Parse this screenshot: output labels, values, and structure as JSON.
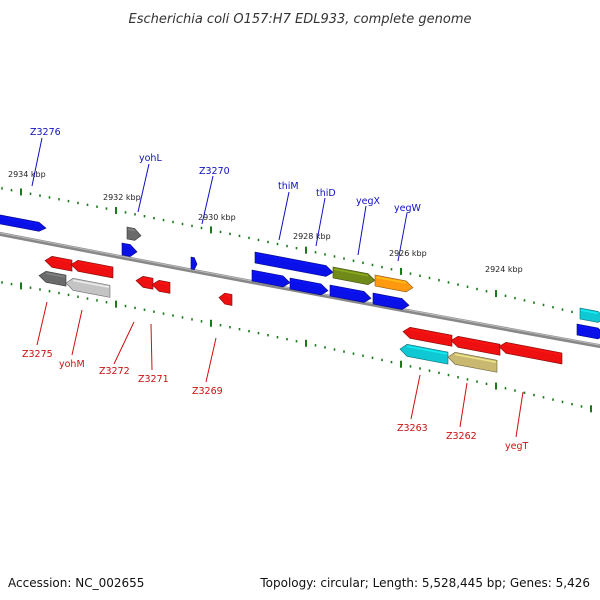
{
  "title": "Escherichia coli O157:H7 EDL933, complete genome",
  "footer": {
    "accession": "Accession: NC_002655",
    "summary": "Topology: circular; Length: 5,528,445 bp; Genes: 5,426"
  },
  "colors": {
    "blue": "#0a10e8",
    "red": "#ee1010",
    "dark_gray": "#6a6a6a",
    "light_gray": "#c4c4c4",
    "olive": "#6f8a18",
    "orange": "#ff9a10",
    "cyan": "#10c8d4",
    "khaki": "#c8b870",
    "tick": "#1a7a1a",
    "backbone": "#888888",
    "label_blue": "#1010c0",
    "label_red": "#cc1010"
  },
  "ticks": [
    "2934 kbp",
    "2932 kbp",
    "2930 kbp",
    "2928 kbp",
    "2926 kbp",
    "2924 kbp"
  ],
  "top_labels": [
    "Z3276",
    "yohL",
    "Z3270",
    "thiM",
    "thiD",
    "yegX",
    "yegW"
  ],
  "bottom_labels": [
    "Z3275",
    "yohM",
    "Z3272",
    "Z3271",
    "Z3269",
    "Z3263",
    "Z3262",
    "yegT"
  ]
}
